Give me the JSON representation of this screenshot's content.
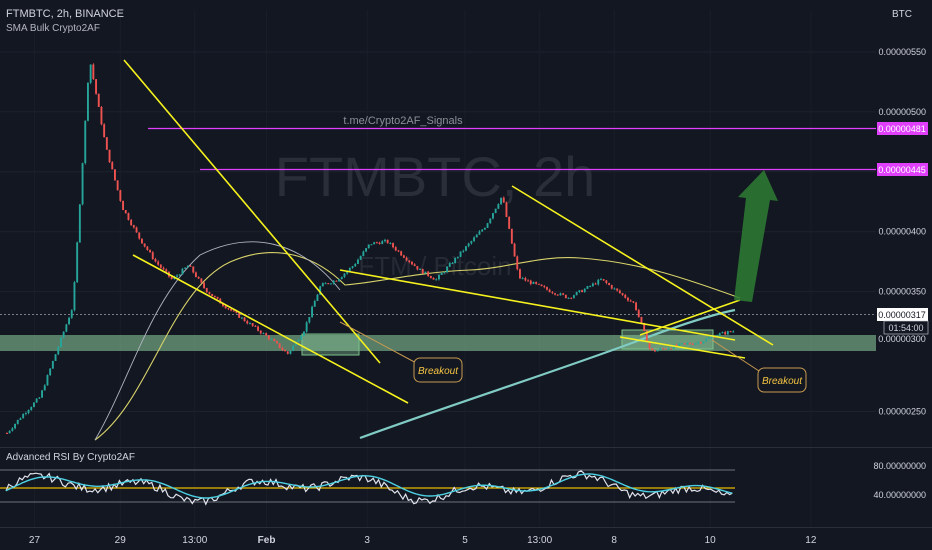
{
  "header": {
    "symbol_line": "FTMBTC, 2h, BINANCE",
    "indicator": "SMA Bulk Crypto2AF",
    "currency": "BTC"
  },
  "watermark": {
    "main": "FTMBTC, 2h",
    "sub": "FTM / Bitcoin",
    "link": "t.me/Crypto2AF_Signals"
  },
  "rsi_panel": {
    "label": "Advanced RSI By Crypto2AF",
    "upper": "80.00000000",
    "lower": "40.00000000"
  },
  "price_axis": {
    "ticks": [
      "0.00000550",
      "0.00000500",
      "0.00000450",
      "0.00000400",
      "0.00000350",
      "0.00000250"
    ],
    "current_price": "0.00000317",
    "countdown": "01:54:00",
    "hidden_label": "0.00000300",
    "level_high": "0.00000481",
    "level_low": "0.00000445"
  },
  "time_axis": {
    "ticks": [
      "27",
      "29",
      "13:00",
      "Feb",
      "3",
      "5",
      "13:00",
      "8",
      "10",
      "12"
    ]
  },
  "annotations": {
    "breakout_1": "Breakout",
    "breakout_2": "Breakout"
  },
  "colors": {
    "bg": "#131722",
    "up": "#26a69a",
    "down": "#ef5350",
    "trend": "#f5f21d",
    "level": "#e040fb",
    "zone": "#8fd19e",
    "arrow": "#2e7d32",
    "sma_short": "#d8d36a",
    "sma_long": "#80cbc4"
  },
  "chart_data": {
    "type": "candlestick",
    "price_levels": [
      4.81e-06,
      4.45e-06
    ],
    "current_price": 3.17e-06,
    "support_zone": [
      2.87e-06,
      2.98e-06
    ],
    "ylim": [
      2.22e-06,
      5.85e-06
    ],
    "candles_close": [
      2.32e-06,
      2.48e-06,
      2.62e-06,
      3e-06,
      3.38e-06,
      5.45e-06,
      4.7e-06,
      4.2e-06,
      3.95e-06,
      3.75e-06,
      3.6e-06,
      3.72e-06,
      3.52e-06,
      3.4e-06,
      3.3e-06,
      3.2e-06,
      3.1e-06,
      2.98e-06,
      3.18e-06,
      3.55e-06,
      3.6e-06,
      3.72e-06,
      3.9e-06,
      3.92e-06,
      3.8e-06,
      3.68e-06,
      3.6e-06,
      3.75e-06,
      3.9e-06,
      4.05e-06,
      4.3e-06,
      3.62e-06,
      3.56e-06,
      3.5e-06,
      3.45e-06,
      3.52e-06,
      3.6e-06,
      3.5e-06,
      3.4e-06,
      3e-06,
      3.03e-06,
      3.06e-06,
      3.08e-06,
      3.14e-06,
      3.17e-06
    ]
  }
}
